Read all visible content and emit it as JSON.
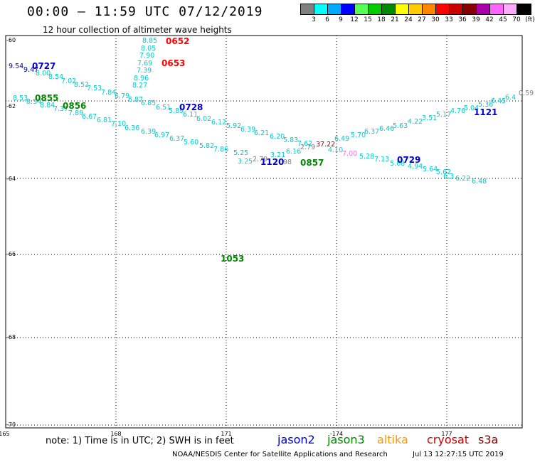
{
  "title": "00:00  –  11:59 UTC 07/12/2019",
  "subtitle": "12 hour collection of altimeter wave heights",
  "color_scale": {
    "ticks": [
      "3",
      "6",
      "9",
      "12",
      "15",
      "18",
      "21",
      "24",
      "27",
      "30",
      "33",
      "36",
      "39",
      "42",
      "45",
      "70",
      "(ft)"
    ],
    "colors": [
      "#808080",
      "#00ffff",
      "#00aaff",
      "#0000ff",
      "#55ff55",
      "#00cc00",
      "#008800",
      "#ffff00",
      "#ffcc00",
      "#ff8800",
      "#ff0000",
      "#cc0000",
      "#880000",
      "#aa00aa",
      "#ff66ff",
      "#ffaaff",
      "#000000"
    ]
  },
  "axes": {
    "lon_labels": [
      "165",
      "168",
      "171",
      "-174",
      "177"
    ],
    "lat_labels": [
      "-60",
      "-62",
      "-64",
      "-66",
      "-68",
      "-70"
    ]
  },
  "points": [
    {
      "v": "9.54",
      "c": "#0000aa"
    },
    {
      "v": "9.47",
      "c": "#0000aa"
    },
    {
      "v": "8.00",
      "c": "#00cccc"
    },
    {
      "v": "8.54",
      "c": "#00cccc"
    },
    {
      "v": "7.02",
      "c": "#00cccc"
    },
    {
      "v": "8.52",
      "c": "#00cccc"
    },
    {
      "v": "7.53",
      "c": "#00cccc"
    },
    {
      "v": "7.84",
      "c": "#00cccc"
    },
    {
      "v": "6.79",
      "c": "#00cccc"
    },
    {
      "v": "6.87",
      "c": "#00cccc"
    },
    {
      "v": "6.85",
      "c": "#00cccc"
    },
    {
      "v": "6.51",
      "c": "#00cccc"
    },
    {
      "v": "5.89",
      "c": "#00cccc"
    },
    {
      "v": "6.11",
      "c": "#00cccc"
    },
    {
      "v": "6.02",
      "c": "#00cccc"
    },
    {
      "v": "6.12",
      "c": "#00cccc"
    },
    {
      "v": "5.92",
      "c": "#00cccc"
    },
    {
      "v": "6.39",
      "c": "#00cccc"
    },
    {
      "v": "6.21",
      "c": "#00cccc"
    },
    {
      "v": "6.20",
      "c": "#00cccc"
    },
    {
      "v": "5.83",
      "c": "#00cccc"
    },
    {
      "v": "7.62",
      "c": "#00cccc"
    },
    {
      "v": "8.85",
      "c": "#00cccc"
    },
    {
      "v": "8.05",
      "c": "#00cccc"
    },
    {
      "v": "7.90",
      "c": "#00cccc"
    },
    {
      "v": "7.69",
      "c": "#00cccc"
    },
    {
      "v": "7.39",
      "c": "#00cccc"
    },
    {
      "v": "8.96",
      "c": "#00cccc"
    },
    {
      "v": "8.27",
      "c": "#00cccc"
    },
    {
      "v": "8.53",
      "c": "#00cccc"
    },
    {
      "v": "8.54",
      "c": "#00cccc"
    },
    {
      "v": "8.84",
      "c": "#00cccc"
    },
    {
      "v": "7.37",
      "c": "#00cccc"
    },
    {
      "v": "7.89",
      "c": "#00cccc"
    },
    {
      "v": "6.67",
      "c": "#00cccc"
    },
    {
      "v": "6.81",
      "c": "#00cccc"
    },
    {
      "v": "7.10",
      "c": "#00cccc"
    },
    {
      "v": "6.36",
      "c": "#00cccc"
    },
    {
      "v": "6.39",
      "c": "#00cccc"
    },
    {
      "v": "6.97",
      "c": "#00cccc"
    },
    {
      "v": "6.37",
      "c": "#00cccc"
    },
    {
      "v": "5.60",
      "c": "#00cccc"
    },
    {
      "v": "5.82",
      "c": "#00cccc"
    },
    {
      "v": "7.86",
      "c": "#00cccc"
    },
    {
      "v": "5.25",
      "c": "#00cccc"
    },
    {
      "v": "3.25",
      "c": "#00cccc"
    },
    {
      "v": "2.79",
      "c": "#808080"
    },
    {
      "v": "3.21",
      "c": "#00cccc"
    },
    {
      "v": "98",
      "c": "#808080"
    },
    {
      "v": "6.16",
      "c": "#00cccc"
    },
    {
      "v": "2.79",
      "c": "#808080"
    },
    {
      "v": "37.22",
      "c": "#880000"
    },
    {
      "v": "6.49",
      "c": "#00cccc"
    },
    {
      "v": "4.10",
      "c": "#00cccc"
    },
    {
      "v": "7.00",
      "c": "#ff66ff"
    },
    {
      "v": "5.70",
      "c": "#00cccc"
    },
    {
      "v": "6.37",
      "c": "#00cccc"
    },
    {
      "v": "5.28",
      "c": "#00cccc"
    },
    {
      "v": "6.46",
      "c": "#00cccc"
    },
    {
      "v": "7.13",
      "c": "#00cccc"
    },
    {
      "v": "5.63",
      "c": "#00cccc"
    },
    {
      "v": "5.68",
      "c": "#00cccc"
    },
    {
      "v": "4.22",
      "c": "#00cccc"
    },
    {
      "v": "4.94",
      "c": "#00cccc"
    },
    {
      "v": "3.51",
      "c": "#00cccc"
    },
    {
      "v": "5.64",
      "c": "#00cccc"
    },
    {
      "v": "5.17",
      "c": "#00cccc"
    },
    {
      "v": "5.62",
      "c": "#00cccc"
    },
    {
      "v": "4.76",
      "c": "#00cccc"
    },
    {
      "v": "6.3",
      "c": "#00cccc"
    },
    {
      "v": "5.04",
      "c": "#00cccc"
    },
    {
      "v": "6.22",
      "c": "#00cccc"
    },
    {
      "v": "5.36",
      "c": "#00cccc"
    },
    {
      "v": "6.48",
      "c": "#00cccc"
    },
    {
      "v": "6.45",
      "c": "#00cccc"
    },
    {
      "v": "6.4",
      "c": "#00cccc"
    },
    {
      "v": "0.59",
      "c": "#808080"
    }
  ],
  "passes": [
    {
      "t": "0727",
      "c": "#0000cc"
    },
    {
      "t": "0652",
      "c": "#ff0000"
    },
    {
      "t": "0653",
      "c": "#ff0000"
    },
    {
      "t": "0855",
      "c": "#008800"
    },
    {
      "t": "0856",
      "c": "#008800"
    },
    {
      "t": "0728",
      "c": "#0000cc"
    },
    {
      "t": "1120",
      "c": "#0000cc"
    },
    {
      "t": "0857",
      "c": "#008800"
    },
    {
      "t": "0729",
      "c": "#0000cc"
    },
    {
      "t": "1121",
      "c": "#0000cc"
    },
    {
      "t": "1053",
      "c": "#008800"
    }
  ],
  "note": "note: 1) Time is in UTC; 2) SWH is in feet",
  "legend": [
    {
      "name": "jason2",
      "color": "#0000cc"
    },
    {
      "name": "jason3",
      "color": "#008800"
    },
    {
      "name": "altika",
      "color": "#ff9900"
    },
    {
      "name": "cryosat",
      "color": "#cc0000"
    },
    {
      "name": "s3a",
      "color": "#880000"
    }
  ],
  "credit": "NOAA/NESDIS Center for Satellite Applications and Research",
  "timestamp": "Jul 13 12:27:15 UTC 2019"
}
